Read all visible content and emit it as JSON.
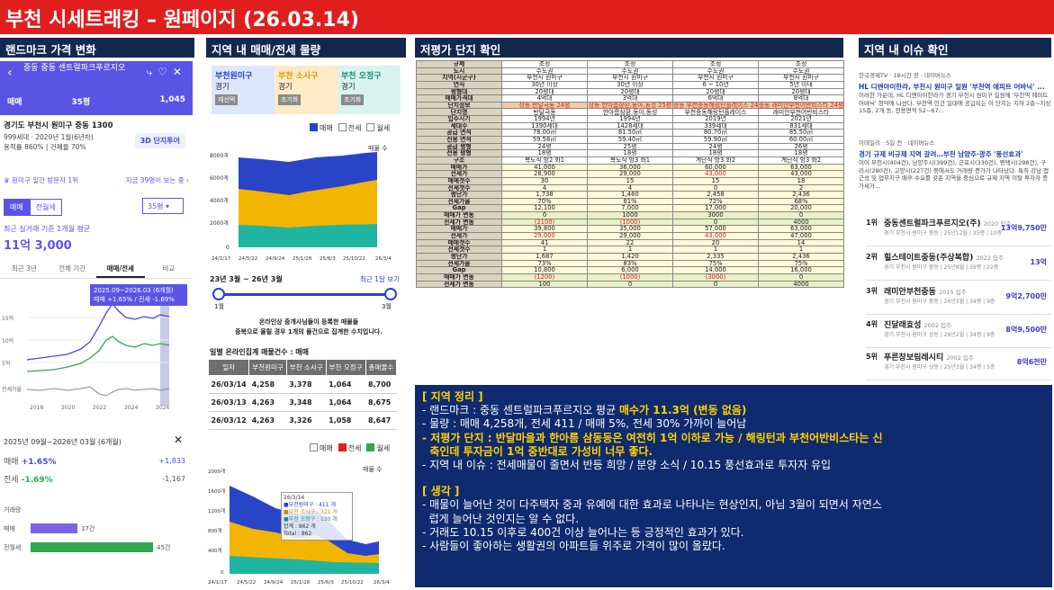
{
  "title": "부천 시세트래킹 – 원페이지 (26.03.14)",
  "sections": {
    "s1": "랜드마크 가격 변화",
    "s2": "지역 내 매매/전세 물량",
    "s3": "저평가 단지 확인",
    "s4": "지역 내 이슈 확인"
  },
  "phone": {
    "title": "중동 중동 센트럴파크푸르지오",
    "tabs": [
      "매매",
      "35평",
      "1,045"
    ],
    "addr": "경기도 부천시 원미구 중동 1300",
    "sub1": "999세대 · 2020년 1월(6년차)",
    "sub2": "용적률 860% | 건폐율 70%",
    "btn3d": "3D 단지투어",
    "rank": "원미구 일간 방문자 1위",
    "rankr": "지금 39명이 보는 중 ›",
    "seg": [
      "매매",
      "전월세"
    ],
    "sel": "35평 ▾",
    "avgl": "최근 실거래 기준 1개월 평균",
    "avgv": "11억 3,000",
    "subtabs": [
      "최근 3년",
      "전체 기간",
      "매매/전세",
      "비교"
    ],
    "tip": "2025.09~2026.03 (6개월)",
    "tip2": "매매 +1.65% / 전세 -1.69%",
    "years": [
      "2018",
      "2020",
      "2022",
      "2024",
      "2026"
    ],
    "yl": [
      "15억",
      "10억",
      "5억",
      "전세가율"
    ],
    "chg": "2025년 09월~2026년 03월 (6개월)",
    "r1l": "매매",
    "r1v": "+1.65%",
    "r1r": "+1,833",
    "r2l": "전세",
    "r2v": "-1.69%",
    "r2r": "-1,167",
    "vol": "거래량",
    "v1": "매매",
    "v1n": "17건",
    "v2": "전월세",
    "v2n": "45건"
  },
  "col2": {
    "boxes": [
      {
        "n": "부천원미구",
        "a": "경기",
        "t": "재선택"
      },
      {
        "n": "부천 소사구",
        "a": "경기",
        "t": "초기화"
      },
      {
        "n": "부천 오정구",
        "a": "경기",
        "t": "초기화"
      }
    ],
    "leg": [
      "매매",
      "전세",
      "월세"
    ],
    "y1": [
      "8000개",
      "6000개",
      "4000개",
      "2000개",
      "0"
    ],
    "x1": [
      "24/1/17",
      "24/5/22",
      "24/9/24",
      "25/1/28",
      "25/6/3",
      "25/10/22",
      "26/3/4"
    ],
    "chart1label": "매물 수",
    "range": "23년 3월 ~ 26년 3월",
    "recent": "최근 1달 보기",
    "sl": [
      "1월",
      "3월"
    ],
    "note1": "온라인상 중개사님들이 등록한 매물들",
    "note2": "중복으로 올릴 경우 1개의 물건으로 집계한 수치입니다.",
    "tabletitle": "일별 온라인집계 매물건수 : 매매",
    "th": [
      "일자",
      "부천원미구",
      "부천 소사구",
      "부천 오정구",
      "총매물수"
    ],
    "rows": [
      [
        "26/03/14",
        "4,258",
        "3,378",
        "1,064",
        "8,700"
      ],
      [
        "26/03/13",
        "4,263",
        "3,348",
        "1,064",
        "8,675"
      ],
      [
        "26/03/12",
        "4,263",
        "3,326",
        "1,058",
        "8,647"
      ]
    ],
    "leg2": [
      "매매",
      "전세",
      "월세"
    ],
    "y2": [
      "2000개",
      "1600개",
      "1200개",
      "800개",
      "400개",
      "0"
    ],
    "chart2label": "매물 수",
    "tt": [
      "26/3/14",
      "■부천원미구 : 411 개",
      "■부천 소사구 : 321 개",
      "■부천 오정구 : 130 개",
      "합계 : 862 개",
      "Total : 862"
    ]
  },
  "comp": {
    "rows": [
      [
        "규제",
        "조정",
        "조정",
        "조정",
        "조정"
      ],
      [
        "도시",
        "수도권",
        "수도권",
        "수도권",
        "수도권"
      ],
      [
        "지역(시군구)",
        "부천시 원미구",
        "부천시 원미구",
        "부천시 원미구",
        "부천시 원미구"
      ],
      [
        "연식",
        "30년 이상",
        "30년 이상",
        "6 ~ 10년",
        "5년 이내"
      ],
      [
        "평형대",
        "20평대",
        "20평대",
        "20평대",
        "20평대"
      ],
      [
        "매매가격대",
        "4억대",
        "3억대",
        "6억대",
        "8억대"
      ],
      [
        "단지정보",
        "상동 반달극동 24평",
        "상동 한아름삼환,동아,동성 25평",
        "중동 부천중동해링턴플레이스 24평",
        "중동 래미안부천어반비스타 24평"
      ],
      [
        "단지명",
        "반달극동",
        "한아름삼환,동아,동성",
        "부천중동해링턴플레이스",
        "래미안부천어반비스타"
      ],
      [
        "입주시기",
        "1994년",
        "1994년",
        "2019년",
        "2021년"
      ],
      [
        "세대수",
        "1390세대",
        "1428세대",
        "339세대",
        "831세대"
      ],
      [
        "공급 면적",
        "78.00㎡",
        "81.50㎡",
        "80.70㎡",
        "85.50㎡"
      ],
      [
        "전용 면적",
        "59.58㎡",
        "59.40㎡",
        "59.90㎡",
        "60.00㎡"
      ],
      [
        "공급 평형",
        "24평",
        "25평",
        "24평",
        "26평"
      ],
      [
        "전용 평형",
        "18평",
        "18평",
        "18평",
        "18평"
      ],
      [
        "구조",
        "복도식 방2 화1",
        "복도식 방3 화1",
        "계단식 방3 화2",
        "계단식 방3 화2"
      ],
      [
        "매매가",
        "41,000",
        "36,000",
        "60,000",
        "63,000"
      ],
      [
        "전세가",
        "28,900",
        "29,000",
        "43,000",
        "43,000"
      ],
      [
        "매매갯수",
        "30",
        "15",
        "15",
        "18"
      ],
      [
        "전세갯수",
        "4",
        "4",
        "0",
        "2"
      ],
      [
        "평단가",
        "1,738",
        "1,460",
        "2,458",
        "2,436"
      ],
      [
        "전세가율",
        "70%",
        "81%",
        "72%",
        "68%"
      ],
      [
        "Gap",
        "12,100",
        "7,000",
        "17,000",
        "20,000"
      ],
      [
        "매매가 변동",
        "0",
        "1000",
        "3000",
        "0"
      ],
      [
        "전세가 변동",
        "(2100)",
        "(1000)",
        "0",
        "4000"
      ],
      [
        "매매가",
        "39,800",
        "35,000",
        "57,000",
        "63,000"
      ],
      [
        "전세가",
        "29,000",
        "29,000",
        "43,000",
        "47,000"
      ],
      [
        "매매갯수",
        "41",
        "22",
        "20",
        "14"
      ],
      [
        "전세갯수",
        "1",
        "1",
        "1",
        "1"
      ],
      [
        "평단가",
        "1,687",
        "1,420",
        "2,335",
        "2,436"
      ],
      [
        "전세가율",
        "73%",
        "83%",
        "75%",
        "75%"
      ],
      [
        "Gap",
        "10,800",
        "6,000",
        "14,000",
        "16,000"
      ],
      [
        "매매가 변동",
        "(1200)",
        "(1000)",
        "(3000)",
        "0"
      ],
      [
        "전세가 변동",
        "100",
        "0",
        "0",
        "4000"
      ]
    ]
  },
  "summary": {
    "h1": "[ 지역 정리 ]",
    "l1a": "- 랜드마크 : 중동 센트럴파크푸르지오 평균 ",
    "l1b": "매수가 11.3억 (변동 없음)",
    "l2": "- 물량 : 매매 4,258개, 전세 411 / 매매 5%, 전세 30% 가까이 늘어남",
    "l3": "- 저평가 단지 : 반달마을과 한아름 삼동동은 여전히 1억 이하로 가능 / 해링턴과 부천어반비스타는 신",
    "l3b": "  축인데 투자금이 1억 중반대로 가성비 너무 좋다.",
    "l4": "- 지역 내 이슈 : 전세매물이 줄면서 반등 희망 / 분양 소식 / 10.15 풍선효과로 투자자 유입",
    "h2": "[ 생각 ]",
    "t1": "- 매물이 늘어난 것이 다주택자 중과 유예에 대한 효과로 나타나는 현상인지, 아님 3월이 되면서 자연스",
    "t1b": "  럽게 늘어난 것인지는 알 수 없다.",
    "t2": "- 거래도 10.15 이후로 400건 이상 늘어나는 등 긍정적인 효과가 있다.",
    "t3": "- 사람들이 좋아하는 생활권의 아파트들 위주로 가격이 많이 올랐다."
  },
  "news": [
    {
      "src": "한국경제TV · 18시간 전 · 네이버뉴스",
      "tl": "HL 디앤아이한라, 부천시 원미구 일원 '부천역 에피트 어바닉' ...",
      "bd": "이러한 가운데, HL 디앤아이한라가 경기 부천시 원미구 일원에 '부천역 에피트 어바닉' 청약에 나선다. 부천역 인근 일대에 공급되는 이 단지는 지하 2층~지상 15층, 2개 동, 전용면적 52~67..."
    },
    {
      "src": "이데일리 · 5일 전 · 네이버뉴스",
      "tl": "경기 규제 비규제 지역 갈려…부천 남양주·광주 '풍선효과'",
      "bd": "이어 부천시(404건), 남양주시(399건), 군포시(330건), 평택시(298건), 구리시(280건), 고양시(227건) 등에서도 거래량 증가가 나타났다. 특히 강남 접근성 및 업무지구 배후 수요를 갖춘 지역을 중심으로 규제 지역 이탈 투자자 증가세가..."
    }
  ],
  "apts": [
    {
      "r": "1위",
      "nm": "중동센트럴파크푸르지오(주)",
      "y": "2020 입주",
      "ds": "경기 부천시 원미구 중동 | 25년12월 | 35평 | 10층",
      "pr": "13억9,750만"
    },
    {
      "r": "2위",
      "nm": "힐스테이트중동(주상복합)",
      "y": "2022 입주",
      "ds": "경기 부천시 원미구 중동 | 25년8월 | 39평 | 22층",
      "pr": "13억"
    },
    {
      "r": "3위",
      "nm": "래미안부천중동",
      "y": "2015 입주",
      "ds": "경기 부천시 원미구 중동 | 26년3월 | 34평 | 9층",
      "pr": "9억2,700만"
    },
    {
      "r": "4위",
      "nm": "진달래효성",
      "y": "2002 입주",
      "ds": "경기 부천시 원미구 상동 | 26년2월 | 34평 | 9층",
      "pr": "8억9,500만"
    },
    {
      "r": "5위",
      "nm": "푸른창보림레시티",
      "y": "2002 입주",
      "ds": "경기 부천시 원미구 상동 | 25년3월 | 34평 | 5층",
      "pr": "8억6천만"
    }
  ],
  "colors": {
    "accent": "#e01e1e",
    "brand": "#5a54e6",
    "navy": "#0f2a6e"
  }
}
